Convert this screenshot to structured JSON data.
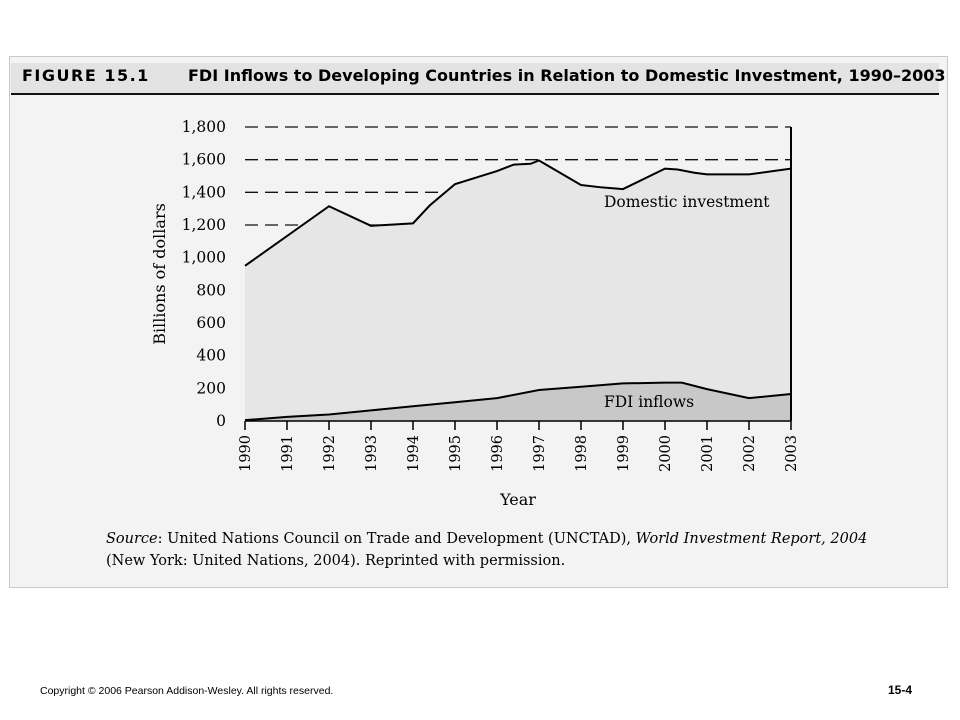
{
  "figure": {
    "number": "FIGURE 15.1",
    "title": "FDI Inflows to Developing Countries in Relation to Domestic Investment, 1990–2003"
  },
  "chart_data": {
    "type": "area",
    "xlabel": "Year",
    "ylabel": "Billions of dollars",
    "ylim": [
      0,
      1800
    ],
    "yticks": [
      0,
      200,
      400,
      600,
      800,
      1000,
      1200,
      1400,
      1600,
      1800
    ],
    "ytick_labels": [
      "0",
      "200",
      "400",
      "600",
      "800",
      "1,000",
      "1,200",
      "1,400",
      "1,600",
      "1,800"
    ],
    "categories": [
      "1990",
      "1991",
      "1992",
      "1993",
      "1994",
      "1995",
      "1996",
      "1997",
      "1998",
      "1999",
      "2000",
      "2001",
      "2002",
      "2003"
    ],
    "series": [
      {
        "name": "Domestic investment",
        "color": "#e6e6e6",
        "x": [
          1990,
          1992,
          1993,
          1994,
          1994.4,
          1995,
          1996,
          1996.4,
          1996.8,
          1997,
          1998,
          1998.5,
          1999,
          2000,
          2000.3,
          2000.7,
          2001,
          2002,
          2003
        ],
        "values": [
          950,
          1315,
          1195,
          1210,
          1320,
          1450,
          1530,
          1570,
          1575,
          1595,
          1445,
          1430,
          1420,
          1545,
          1540,
          1520,
          1510,
          1510,
          1545
        ]
      },
      {
        "name": "FDI inflows",
        "color": "#c8c8c8",
        "x": [
          1990,
          1991,
          1992,
          1993,
          1994,
          1995,
          1996,
          1997,
          1998,
          1999,
          2000,
          2000.4,
          2001,
          2002,
          2003
        ],
        "values": [
          5,
          25,
          40,
          65,
          90,
          115,
          140,
          190,
          210,
          230,
          235,
          235,
          195,
          140,
          165
        ]
      }
    ],
    "dashed_gridlines": [
      1200,
      1400,
      1600,
      1800
    ]
  },
  "source": {
    "label": "Source",
    "text1": ": United Nations Council on Trade and Development (UNCTAD), ",
    "italic": "World Investment Report, 2004",
    "text2": " (New York: United Nations, 2004). Reprinted with permission."
  },
  "footer": {
    "copyright": "Copyright © 2006 Pearson Addison-Wesley. All rights reserved.",
    "slide_number": "15-4"
  }
}
